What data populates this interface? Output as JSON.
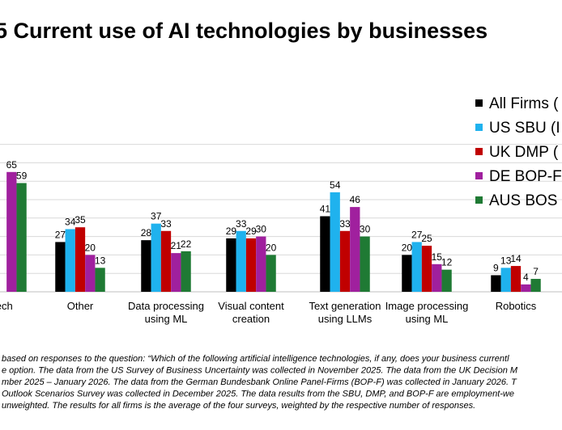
{
  "title": "5 Current use of AI technologies by businesses",
  "legend_labels": [
    "All Firms (",
    "US SBU (I",
    "UK DMP (",
    "DE BOP-F",
    "AUS BOS"
  ],
  "footnote": [
    "based on responses to the question: “Which of the following artificial intelligence technologies, if any, does your business currentl",
    "e option. The data from the US Survey of Business Uncertainty was collected in November 2025. The data from the UK Decision M",
    "mber 2025 – January 2026. The data from the German Bundesbank Online Panel-Firms (BOP-F) was collected in January 2026. T",
    "Outlook Scenarios Survey was collected in December 2025. The data results from the SBU, DMP, and BOP-F are employment-we",
    "unweighted. The results for all firms is the average of the four surveys, weighted by the respective number of responses."
  ],
  "chart_data": {
    "type": "bar",
    "title": "5 Current use of AI technologies by businesses",
    "xlabel": "",
    "ylabel": "",
    "ylim": [
      0,
      80
    ],
    "grid": true,
    "legend_position": "right",
    "categories": [
      [
        "Tech"
      ],
      [
        "Other"
      ],
      [
        "Data processing",
        "using ML"
      ],
      [
        "Visual content",
        "creation"
      ],
      [
        "Text generation",
        "using LLMs"
      ],
      [
        "Image processing",
        "using ML"
      ],
      [
        "Robotics"
      ]
    ],
    "series": [
      {
        "name": "All Firms (",
        "color": "#000000",
        "values": [
          null,
          27,
          28,
          29,
          41,
          20,
          9
        ]
      },
      {
        "name": "US SBU (I",
        "color": "#1fb2ee",
        "values": [
          null,
          34,
          37,
          33,
          54,
          27,
          13
        ]
      },
      {
        "name": "UK DMP (",
        "color": "#c00000",
        "values": [
          null,
          35,
          33,
          29,
          33,
          25,
          14
        ]
      },
      {
        "name": "DE BOP-F",
        "color": "#a0209e",
        "values": [
          65,
          20,
          21,
          30,
          46,
          15,
          4
        ]
      },
      {
        "name": "AUS BOS",
        "color": "#1f7a34",
        "values": [
          59,
          13,
          22,
          20,
          30,
          12,
          7
        ]
      }
    ]
  }
}
